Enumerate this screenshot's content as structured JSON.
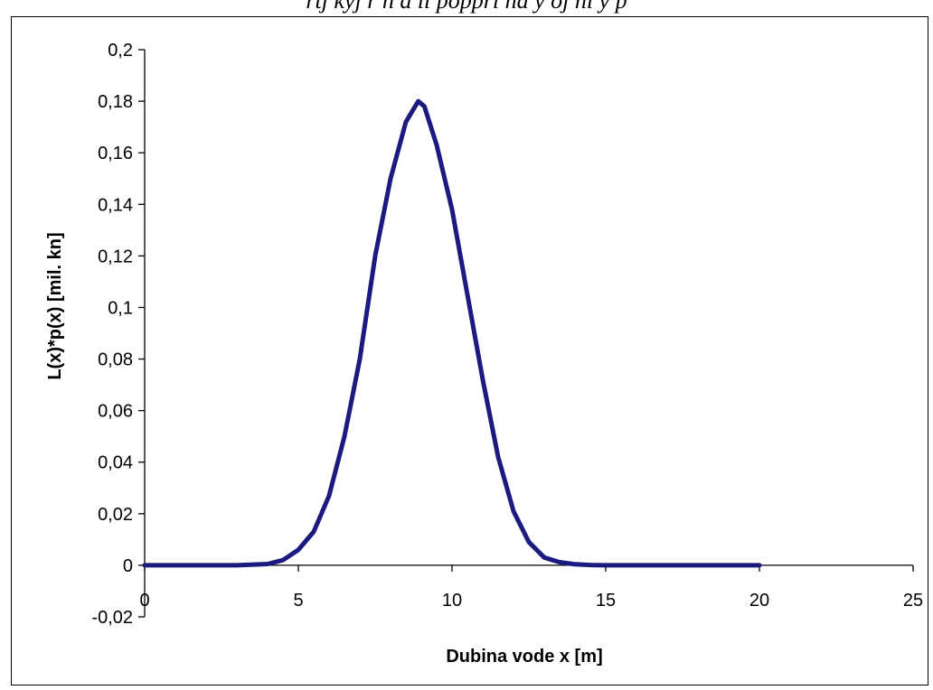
{
  "caption_fragment": "rtj kyj r h a ll poppri na y oj ni y p",
  "chart_data": {
    "type": "line",
    "xlabel": "Dubina vode x [m]",
    "ylabel": "L(x)*p(x) [mil. kn]",
    "xlim": [
      0,
      25
    ],
    "ylim": [
      -0.02,
      0.2
    ],
    "x_ticks": [
      0,
      5,
      10,
      15,
      20,
      25
    ],
    "x_tick_labels": [
      "0",
      "5",
      "10",
      "15",
      "20",
      "25"
    ],
    "y_ticks": [
      0.2,
      0.18,
      0.16,
      0.14,
      0.12,
      0.1,
      0.08,
      0.06,
      0.04,
      0.02,
      0,
      -0.02
    ],
    "y_tick_labels": [
      "0,2",
      "0,18",
      "0,16",
      "0,14",
      "0,12",
      "0,1",
      "0,08",
      "0,06",
      "0,04",
      "0,02",
      "0",
      "-0,02"
    ],
    "grid": false,
    "line_color": "#1a1a80",
    "series": [
      {
        "x": [
          0,
          1,
          2,
          3,
          4,
          4.5,
          5,
          5.5,
          6,
          6.5,
          7,
          7.5,
          8,
          8.5,
          8.9,
          9.1,
          9.5,
          10,
          10.5,
          11,
          11.5,
          12,
          12.5,
          13,
          13.5,
          14,
          14.5,
          15,
          16,
          17,
          18,
          19,
          20
        ],
        "y": [
          0,
          0,
          0,
          0,
          0.0005,
          0.002,
          0.006,
          0.013,
          0.027,
          0.05,
          0.08,
          0.12,
          0.15,
          0.172,
          0.18,
          0.178,
          0.163,
          0.138,
          0.105,
          0.072,
          0.042,
          0.021,
          0.009,
          0.003,
          0.0012,
          0.0004,
          0.0001,
          0,
          0,
          0,
          0,
          0,
          0
        ]
      }
    ]
  }
}
